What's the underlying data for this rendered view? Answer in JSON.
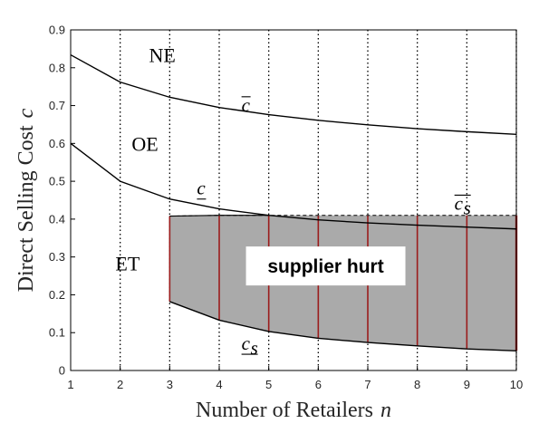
{
  "chart_data": {
    "type": "line",
    "xlabel_text": "Number of Retailers",
    "xlabel_var": "n",
    "ylabel_text": "Direct Selling Cost",
    "ylabel_var": "c",
    "xlim": [
      1,
      10
    ],
    "ylim": [
      0,
      0.9
    ],
    "xticks": [
      "1",
      "2",
      "3",
      "4",
      "5",
      "6",
      "7",
      "8",
      "9",
      "10"
    ],
    "yticks": [
      "0",
      "0.1",
      "0.2",
      "0.3",
      "0.4",
      "0.5",
      "0.6",
      "0.7",
      "0.8",
      "0.9"
    ],
    "grid": "vertical dotted lines at n = 2 through 10",
    "series": [
      {
        "name": "c̄",
        "x": [
          1,
          2,
          3,
          4,
          5,
          6,
          7,
          8,
          9,
          10
        ],
        "y": [
          0.834,
          0.762,
          0.722,
          0.695,
          0.676,
          0.661,
          0.649,
          0.639,
          0.631,
          0.624
        ]
      },
      {
        "name": "c̲",
        "x": [
          1,
          2,
          3,
          4,
          5,
          6,
          7,
          8,
          9,
          10
        ],
        "y": [
          0.6,
          0.5,
          0.453,
          0.427,
          0.41,
          0.398,
          0.39,
          0.384,
          0.379,
          0.374
        ]
      },
      {
        "name": "c̄s",
        "x": [
          3,
          4,
          5,
          6,
          7,
          8,
          9,
          10
        ],
        "y": [
          0.408,
          0.41,
          0.41,
          0.41,
          0.41,
          0.41,
          0.41,
          0.41
        ]
      },
      {
        "name": "c̲s",
        "x": [
          3,
          4,
          5,
          6,
          7,
          8,
          9,
          10
        ],
        "y": [
          0.182,
          0.133,
          0.103,
          0.085,
          0.074,
          0.065,
          0.057,
          0.052
        ]
      }
    ],
    "shaded_region": {
      "label": "supplier hurt",
      "fill": "#aaaaaa",
      "edge_color": "#9b1c1c",
      "x_from": 3,
      "x_to": 10
    },
    "region_labels": [
      {
        "text": "NE",
        "x": 2.85,
        "y": 0.815
      },
      {
        "text": "OE",
        "x": 2.5,
        "y": 0.58
      },
      {
        "text": "ET",
        "x": 2.15,
        "y": 0.265
      }
    ],
    "curve_labels": [
      {
        "base": "c",
        "sub": "",
        "bar": "over",
        "x": 4.45,
        "y": 0.685
      },
      {
        "base": "c",
        "sub": "",
        "bar": "under",
        "x": 3.55,
        "y": 0.465
      },
      {
        "base": "c",
        "sub": "s",
        "bar": "over",
        "x": 8.75,
        "y": 0.425
      },
      {
        "base": "c",
        "sub": "s",
        "bar": "under",
        "x": 4.45,
        "y": 0.055
      }
    ]
  }
}
